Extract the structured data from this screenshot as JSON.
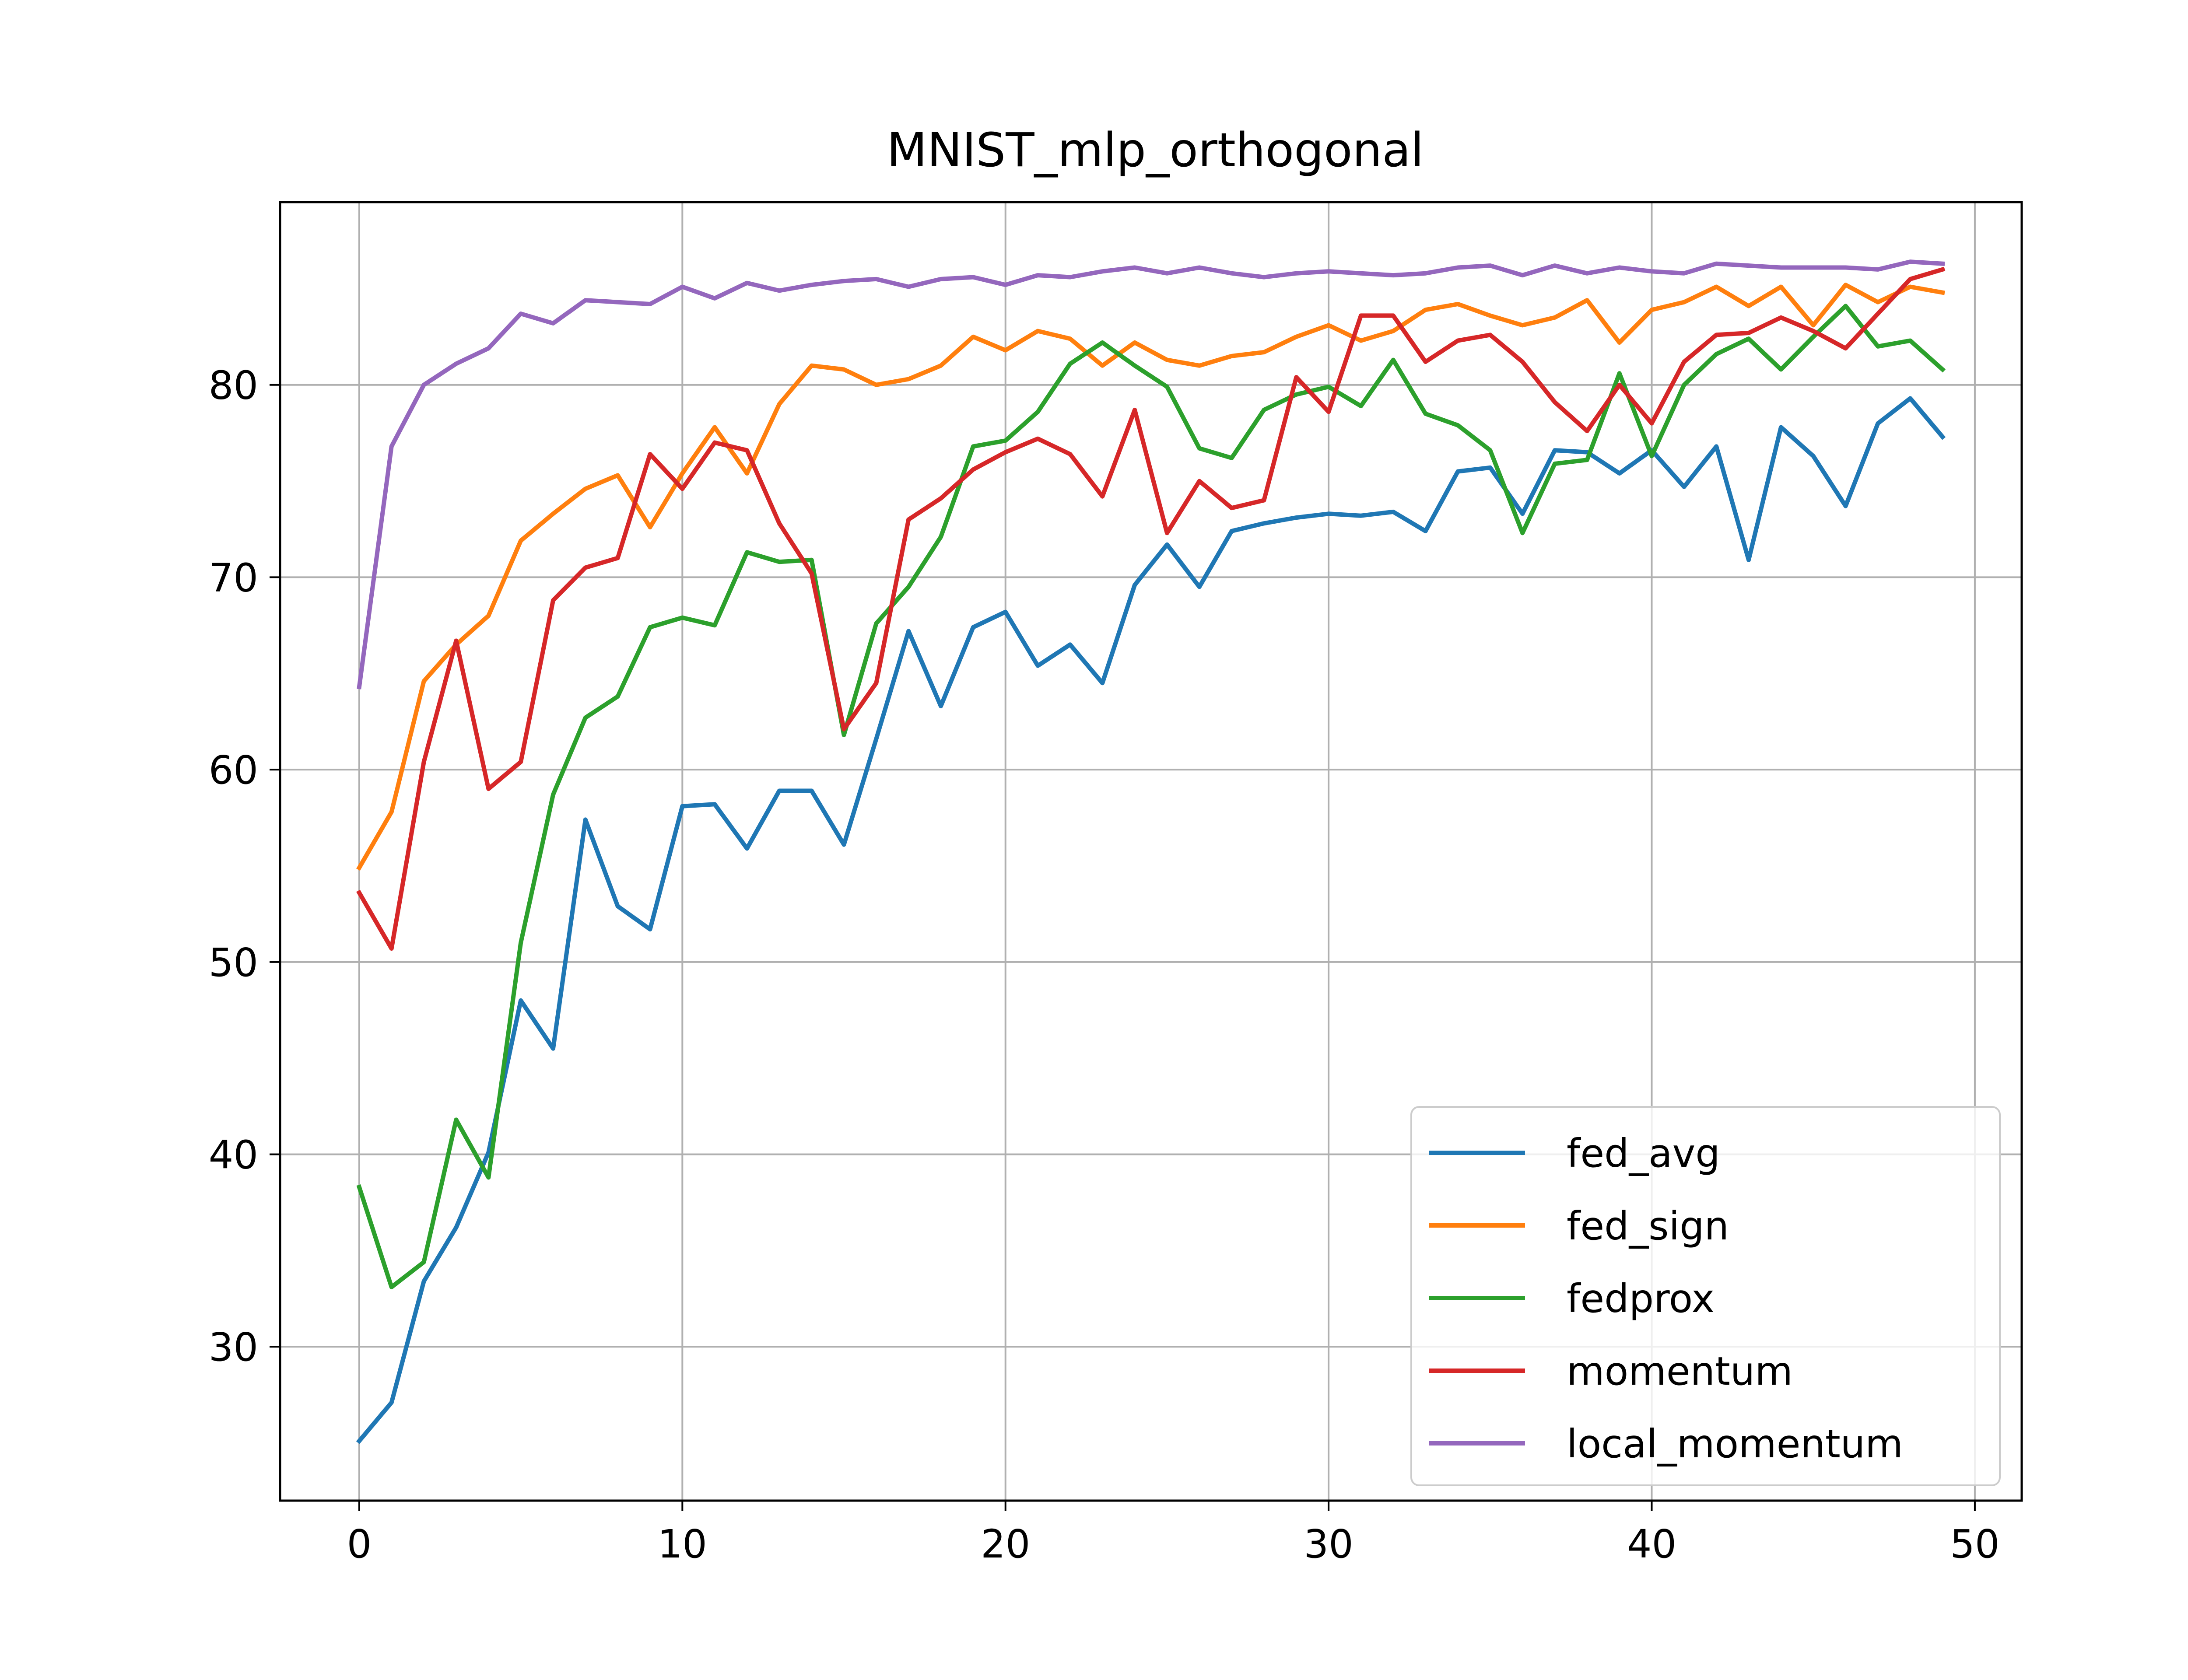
{
  "chart_data": {
    "type": "line",
    "title": "MNIST_mlp_orthogonal",
    "xlabel": "",
    "ylabel": "",
    "xlim": [
      -2.45,
      51.45
    ],
    "ylim": [
      22.0,
      89.5
    ],
    "xticks": [
      0,
      10,
      20,
      30,
      40,
      50
    ],
    "yticks": [
      30,
      40,
      50,
      60,
      70,
      80
    ],
    "grid": true,
    "legend_position": "lower-right",
    "x": [
      0,
      1,
      2,
      3,
      4,
      5,
      6,
      7,
      8,
      9,
      10,
      11,
      12,
      13,
      14,
      15,
      16,
      17,
      18,
      19,
      20,
      21,
      22,
      23,
      24,
      25,
      26,
      27,
      28,
      29,
      30,
      31,
      32,
      33,
      34,
      35,
      36,
      37,
      38,
      39,
      40,
      41,
      42,
      43,
      44,
      45,
      46,
      47,
      48,
      49
    ],
    "series": [
      {
        "name": "fed_avg",
        "color": "#1f77b4",
        "values": [
          25.1,
          27.1,
          33.4,
          36.2,
          40.1,
          48.0,
          45.5,
          57.4,
          52.9,
          51.7,
          58.1,
          58.2,
          55.9,
          58.9,
          58.9,
          56.1,
          61.6,
          67.2,
          63.3,
          67.4,
          68.2,
          65.4,
          66.5,
          64.5,
          69.6,
          71.7,
          69.5,
          72.4,
          72.8,
          73.1,
          73.3,
          73.2,
          73.4,
          72.4,
          75.5,
          75.7,
          73.3,
          76.6,
          76.5,
          75.4,
          76.6,
          74.7,
          76.8,
          70.9,
          77.8,
          76.3,
          73.7,
          78.0,
          79.3,
          77.3
        ]
      },
      {
        "name": "fed_sign",
        "color": "#ff7f0e",
        "values": [
          54.9,
          57.8,
          64.6,
          66.5,
          68.0,
          71.9,
          73.3,
          74.6,
          75.3,
          72.6,
          75.4,
          77.8,
          75.4,
          79.0,
          81.0,
          80.8,
          80.0,
          80.3,
          81.0,
          82.5,
          81.8,
          82.8,
          82.4,
          81.0,
          82.2,
          81.3,
          81.0,
          81.5,
          81.7,
          82.5,
          83.1,
          82.3,
          82.8,
          83.9,
          84.2,
          83.6,
          83.1,
          83.5,
          84.4,
          82.2,
          83.9,
          84.3,
          85.1,
          84.1,
          85.1,
          83.1,
          85.2,
          84.3,
          85.1,
          84.8
        ]
      },
      {
        "name": "fedprox",
        "color": "#2ca02c",
        "values": [
          38.3,
          33.1,
          34.4,
          41.8,
          38.8,
          51.0,
          58.7,
          62.7,
          63.8,
          67.4,
          67.9,
          67.5,
          71.3,
          70.8,
          70.9,
          61.8,
          67.6,
          69.5,
          72.1,
          76.8,
          77.1,
          78.6,
          81.1,
          82.2,
          81.0,
          79.9,
          76.7,
          76.2,
          78.7,
          79.5,
          79.9,
          78.9,
          81.3,
          78.5,
          77.9,
          76.6,
          72.3,
          75.9,
          76.1,
          80.6,
          76.3,
          80.0,
          81.6,
          82.4,
          80.8,
          82.5,
          84.1,
          82.0,
          82.3,
          80.8
        ]
      },
      {
        "name": "momentum",
        "color": "#d62728",
        "values": [
          53.6,
          50.7,
          60.4,
          66.7,
          59.0,
          60.4,
          68.8,
          70.5,
          71.0,
          76.4,
          74.6,
          77.0,
          76.6,
          72.8,
          70.2,
          62.1,
          64.5,
          73.0,
          74.1,
          75.6,
          76.5,
          77.2,
          76.4,
          74.2,
          78.7,
          72.3,
          75.0,
          73.6,
          74.0,
          80.4,
          78.6,
          83.6,
          83.6,
          81.2,
          82.3,
          82.6,
          81.2,
          79.1,
          77.6,
          80.0,
          78.0,
          81.2,
          82.6,
          82.7,
          83.5,
          82.8,
          81.9,
          83.7,
          85.5,
          86.0
        ]
      },
      {
        "name": "local_momentum",
        "color": "#9467bd",
        "values": [
          64.3,
          76.8,
          80.0,
          81.1,
          81.9,
          83.7,
          83.2,
          84.4,
          84.3,
          84.2,
          85.1,
          84.5,
          85.3,
          84.9,
          85.2,
          85.4,
          85.5,
          85.1,
          85.5,
          85.6,
          85.2,
          85.7,
          85.6,
          85.9,
          86.1,
          85.8,
          86.1,
          85.8,
          85.6,
          85.8,
          85.9,
          85.8,
          85.7,
          85.8,
          86.1,
          86.2,
          85.7,
          86.2,
          85.8,
          86.1,
          85.9,
          85.8,
          86.3,
          86.2,
          86.1,
          86.1,
          86.1,
          86.0,
          86.4,
          86.3
        ]
      }
    ]
  }
}
